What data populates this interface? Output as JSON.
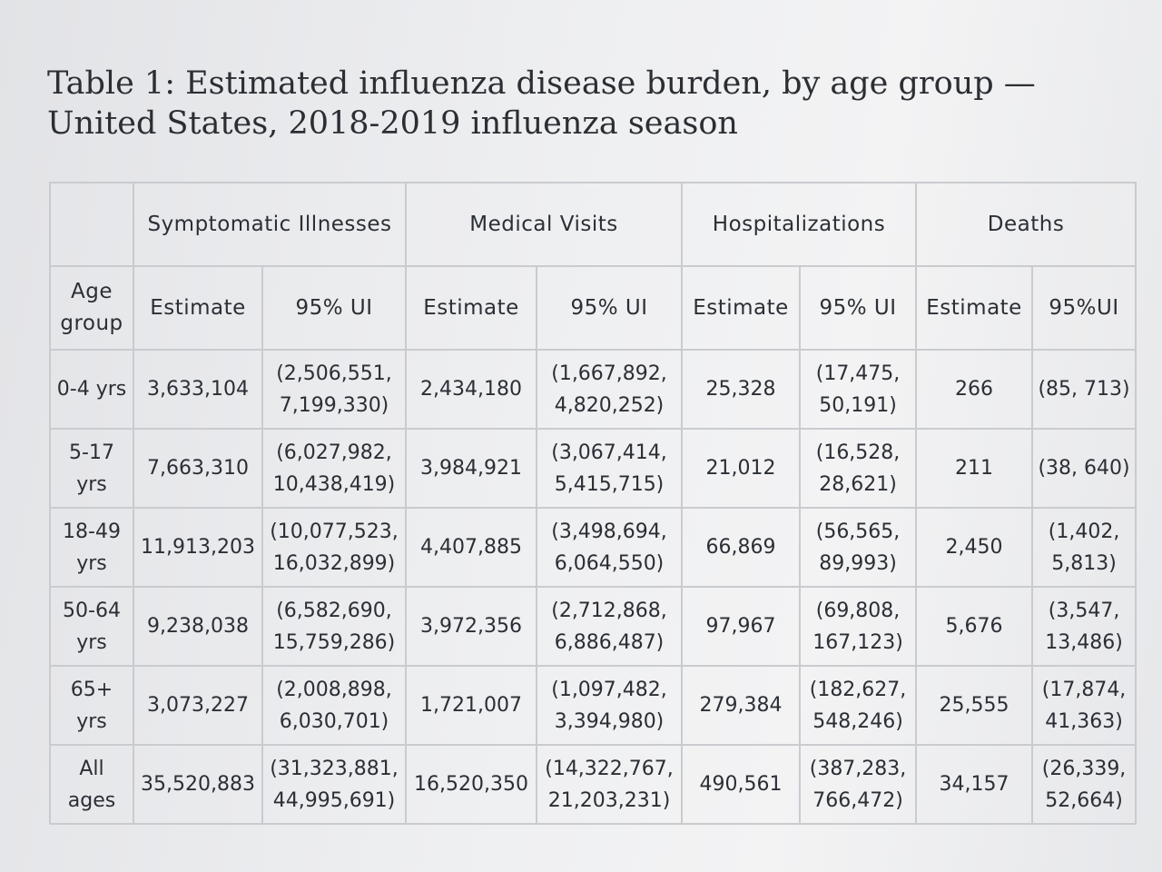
{
  "title": "Table 1: Estimated influenza disease burden, by age group — United States, 2018-2019 influenza season",
  "header": {
    "groups": [
      "Symptomatic Illnesses",
      "Medical Visits",
      "Hospitalizations",
      "Deaths"
    ],
    "age_group": "Age group",
    "estimate": "Estimate",
    "ui": "95% UI",
    "ui_deaths": "95%UI"
  },
  "rows": [
    {
      "age": "0-4 yrs",
      "ill_est": "3,633,104",
      "ill_ui": "(2,506,551, 7,199,330)",
      "vis_est": "2,434,180",
      "vis_ui": "(1,667,892, 4,820,252)",
      "hosp_est": "25,328",
      "hosp_ui": "(17,475, 50,191)",
      "death_est": "266",
      "death_ui": "(85, 713)"
    },
    {
      "age": "5-17 yrs",
      "ill_est": "7,663,310",
      "ill_ui": "(6,027,982, 10,438,419)",
      "vis_est": "3,984,921",
      "vis_ui": "(3,067,414, 5,415,715)",
      "hosp_est": "21,012",
      "hosp_ui": "(16,528, 28,621)",
      "death_est": "211",
      "death_ui": "(38, 640)"
    },
    {
      "age": "18-49 yrs",
      "ill_est": "11,913,203",
      "ill_ui": "(10,077,523, 16,032,899)",
      "vis_est": "4,407,885",
      "vis_ui": "(3,498,694, 6,064,550)",
      "hosp_est": "66,869",
      "hosp_ui": "(56,565, 89,993)",
      "death_est": "2,450",
      "death_ui": "(1,402, 5,813)"
    },
    {
      "age": "50-64 yrs",
      "ill_est": "9,238,038",
      "ill_ui": "(6,582,690, 15,759,286)",
      "vis_est": "3,972,356",
      "vis_ui": "(2,712,868, 6,886,487)",
      "hosp_est": "97,967",
      "hosp_ui": "(69,808, 167,123)",
      "death_est": "5,676",
      "death_ui": "(3,547, 13,486)"
    },
    {
      "age": "65+ yrs",
      "ill_est": "3,073,227",
      "ill_ui": "(2,008,898, 6,030,701)",
      "vis_est": "1,721,007",
      "vis_ui": "(1,097,482, 3,394,980)",
      "hosp_est": "279,384",
      "hosp_ui": "(182,627, 548,246)",
      "death_est": "25,555",
      "death_ui": "(17,874, 41,363)"
    },
    {
      "age": "All ages",
      "ill_est": "35,520,883",
      "ill_ui": "(31,323,881, 44,995,691)",
      "vis_est": "16,520,350",
      "vis_ui": "(14,322,767, 21,203,231)",
      "hosp_est": "490,561",
      "hosp_ui": "(387,283, 766,472)",
      "death_est": "34,157",
      "death_ui": "(26,339, 52,664)"
    }
  ]
}
